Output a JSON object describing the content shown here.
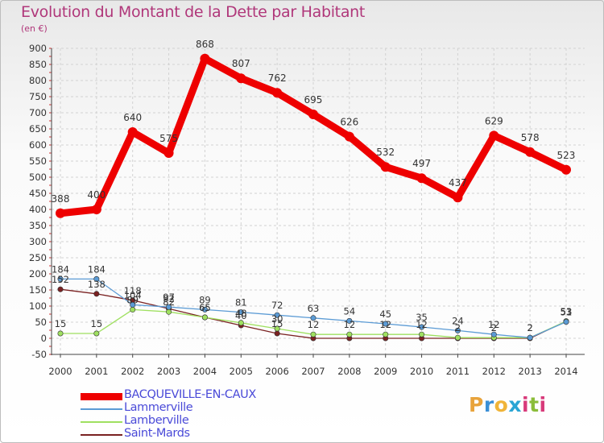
{
  "title": "Evolution du Montant de la Dette par Habitant",
  "subtitle": "(en €)",
  "brand": {
    "letters": [
      "P",
      "r",
      "o",
      "x",
      "i",
      "t",
      "i"
    ],
    "colors": [
      "#e8a33b",
      "#3a8fd6",
      "#f0b438",
      "#2aa5d4",
      "#d83a7a",
      "#8bbd3a",
      "#d83a7a"
    ]
  },
  "chart_data": {
    "type": "line",
    "x": [
      "2000",
      "2001",
      "2002",
      "2003",
      "2004",
      "2005",
      "2006",
      "2007",
      "2008",
      "2009",
      "2010",
      "2011",
      "2012",
      "2013",
      "2014"
    ],
    "ylim": [
      -50,
      900
    ],
    "yticks": [
      -50,
      0,
      50,
      100,
      150,
      200,
      250,
      300,
      350,
      400,
      450,
      500,
      550,
      600,
      650,
      700,
      750,
      800,
      850,
      900
    ],
    "series": [
      {
        "name": "BACQUEVILLE-EN-CAUX",
        "color": "#ee0000",
        "width": 9,
        "marker": 6,
        "values": [
          388,
          400,
          640,
          575,
          868,
          807,
          762,
          695,
          626,
          532,
          497,
          437,
          629,
          578,
          523
        ],
        "labels": [
          "388",
          "400",
          "640",
          "575",
          "868",
          "807",
          "762",
          "695",
          "626",
          "532",
          "497",
          "437",
          "629",
          "578",
          "523"
        ]
      },
      {
        "name": "Lammerville",
        "color": "#5b9bd5",
        "width": 1.3,
        "marker": 3.2,
        "values": [
          184,
          184,
          104,
          97,
          89,
          81,
          72,
          63,
          54,
          45,
          35,
          24,
          12,
          2,
          51
        ],
        "labels": [
          "184",
          "184",
          "104",
          "97",
          "89",
          "81",
          "72",
          "63",
          "54",
          "45",
          "35",
          "24",
          "12",
          "2",
          "51"
        ]
      },
      {
        "name": "Lamberville",
        "color": "#9fe060",
        "width": 1.3,
        "marker": 3.2,
        "values": [
          15,
          15,
          89,
          82,
          65,
          48,
          30,
          12,
          12,
          12,
          12,
          2,
          2,
          2,
          53
        ],
        "labels": [
          "15",
          "15",
          "89",
          "82",
          "65",
          "48",
          "30",
          "12",
          "12",
          "12",
          "12",
          "2",
          "2",
          "2",
          "53"
        ]
      },
      {
        "name": "Saint-Mards",
        "color": "#7a2222",
        "width": 1.3,
        "marker": 3.2,
        "values": [
          152,
          138,
          118,
          92,
          65,
          40,
          15,
          0,
          0,
          0,
          0,
          0,
          0,
          0,
          53
        ],
        "labels": [
          "152",
          "138",
          "118",
          "92",
          "65",
          "40",
          "15",
          "",
          "",
          "",
          "",
          "",
          "",
          "",
          "53"
        ]
      }
    ]
  }
}
